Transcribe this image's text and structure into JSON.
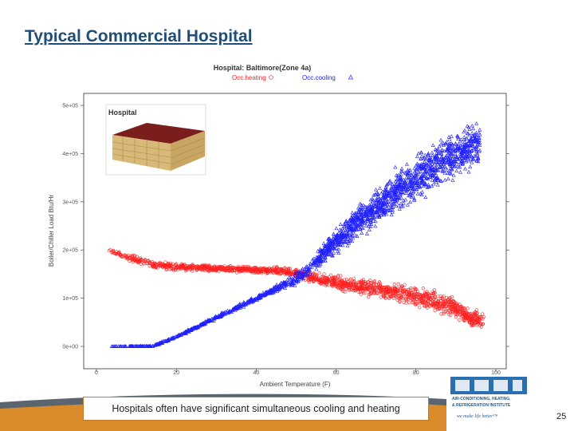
{
  "slide": {
    "title": "Typical Commercial Hospital",
    "caption": "Hospitals often have significant simultaneous cooling and heating",
    "page_number": "25",
    "logo": {
      "line1": "AIR-CONDITIONING, HEATING,",
      "line2": "& REFRIGERATION INSTITUTE",
      "tagline": "we make life better™"
    }
  },
  "colors": {
    "heating": "#ff2020",
    "cooling": "#2020ff",
    "title": "#1f4e79",
    "footer_dark": "#3e4a57",
    "footer_orange": "#d98a2b"
  },
  "chart_data": {
    "type": "scatter",
    "title": "Hospital: Baltimore(Zone 4a)",
    "xlabel": "Ambient Temperature (F)",
    "ylabel": "Boiler/Chiller Load Btu/Hr",
    "xlim": [
      0,
      100
    ],
    "ylim": [
      0,
      500000
    ],
    "xticks": [
      0,
      20,
      40,
      60,
      80,
      100
    ],
    "xtick_labels": [
      "0",
      "20",
      "40",
      "60",
      "80",
      "100"
    ],
    "yticks": [
      0,
      100000,
      200000,
      300000,
      400000,
      500000
    ],
    "ytick_labels": [
      "0e+00",
      "1e+05",
      "2e+05",
      "3e+05",
      "4e+05",
      "5e+05"
    ],
    "grid": false,
    "legend_position": "top",
    "inset_label": "Hospital",
    "series": [
      {
        "name": "Occ.heating",
        "marker": "circle",
        "color": "#ff2020",
        "trend": [
          [
            3,
            200000
          ],
          [
            8,
            185000
          ],
          [
            15,
            168000
          ],
          [
            25,
            163000
          ],
          [
            35,
            160000
          ],
          [
            45,
            157000
          ],
          [
            50,
            152000
          ],
          [
            55,
            140000
          ],
          [
            65,
            125000
          ],
          [
            75,
            112000
          ],
          [
            85,
            95000
          ],
          [
            90,
            80000
          ],
          [
            94,
            55000
          ]
        ],
        "spread": [
          [
            3,
            4000
          ],
          [
            10,
            12000
          ],
          [
            20,
            10000
          ],
          [
            40,
            8000
          ],
          [
            55,
            15000
          ],
          [
            70,
            22000
          ],
          [
            85,
            28000
          ],
          [
            94,
            25000
          ]
        ],
        "x_range": [
          3,
          97
        ]
      },
      {
        "name": "Occ.cooling",
        "marker": "triangle",
        "color": "#2020ff",
        "trend": [
          [
            3,
            0
          ],
          [
            14,
            0
          ],
          [
            20,
            20000
          ],
          [
            30,
            60000
          ],
          [
            40,
            100000
          ],
          [
            50,
            140000
          ],
          [
            55,
            175000
          ],
          [
            60,
            220000
          ],
          [
            70,
            290000
          ],
          [
            80,
            350000
          ],
          [
            90,
            400000
          ],
          [
            96,
            420000
          ]
        ],
        "spread": [
          [
            3,
            0
          ],
          [
            20,
            3000
          ],
          [
            45,
            8000
          ],
          [
            55,
            25000
          ],
          [
            65,
            45000
          ],
          [
            80,
            60000
          ],
          [
            96,
            55000
          ]
        ],
        "x_range": [
          3,
          96
        ]
      }
    ]
  }
}
